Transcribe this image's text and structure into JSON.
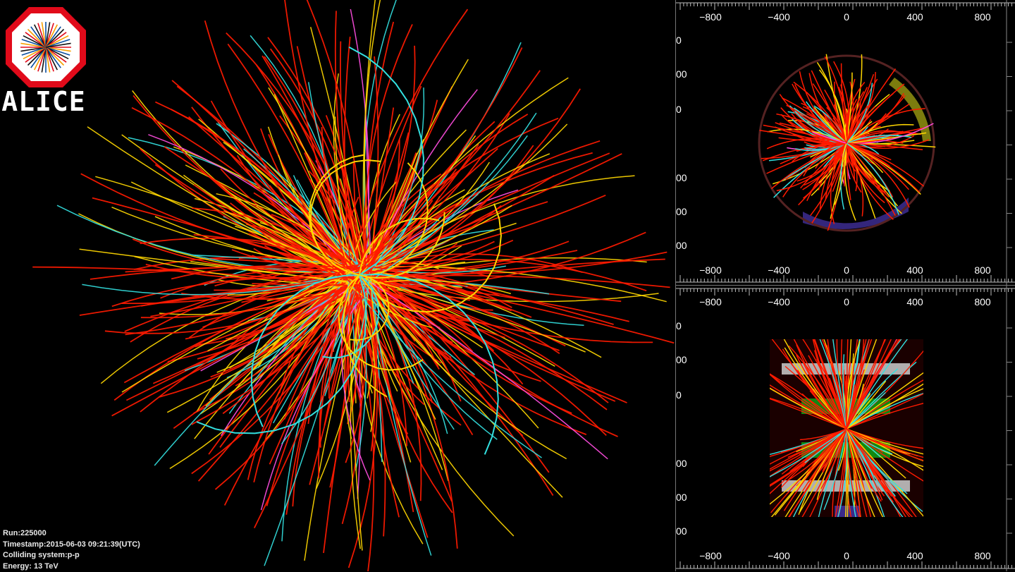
{
  "logo": {
    "text": "ALICE",
    "name": "alice-logo"
  },
  "event_info": {
    "run": "Run:225000",
    "timestamp": "Timestamp:2015-06-03 09:21:39(UTC)",
    "colliding_system": "Colliding system:p-p",
    "energy": "Energy: 13 TeV"
  },
  "axis_labels": {
    "horizontal": [
      "−800",
      "−400",
      "0",
      "400",
      "800"
    ],
    "left_fragment": "00",
    "left_fragment_bottom": "0"
  },
  "colors": {
    "background": "#000000",
    "track_primary": "#ff1a00",
    "track_secondary": "#ffd700",
    "track_tertiary": "#33e0e0",
    "track_quaternary": "#ff4de0",
    "detector_green": "#118811",
    "detector_gray": "#cccccc",
    "detector_blue": "#3a2a8a"
  }
}
